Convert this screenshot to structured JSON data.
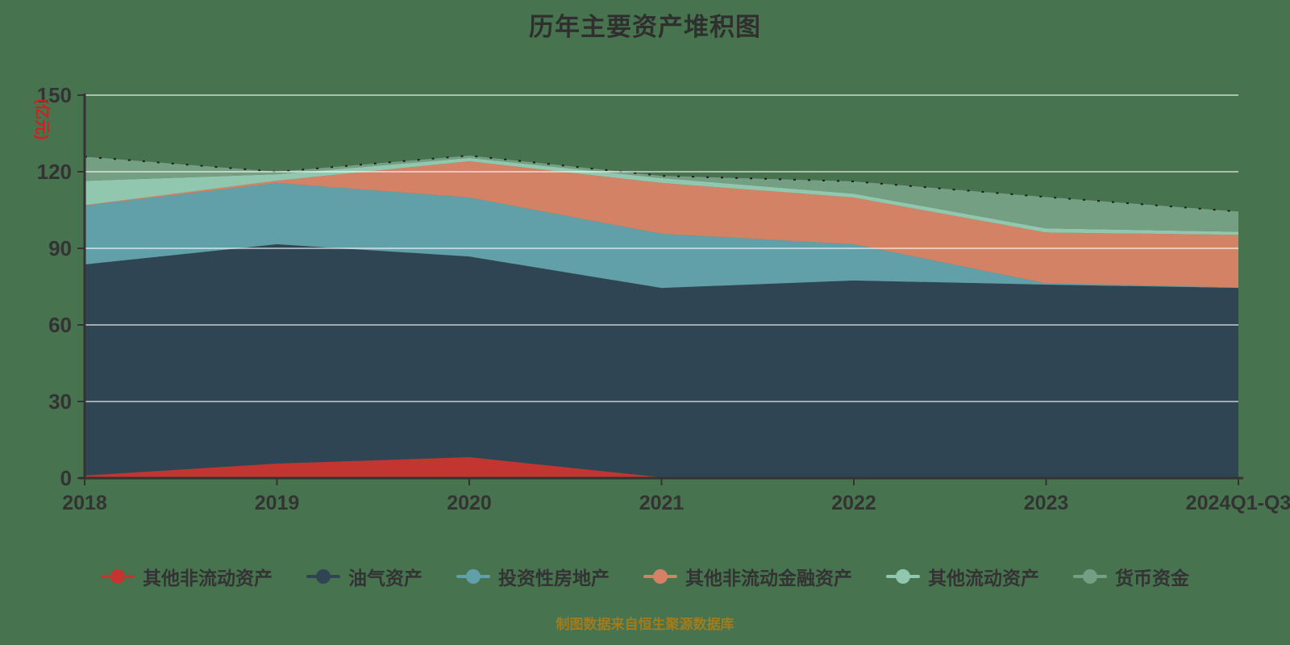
{
  "title": "历年主要资产堆积图",
  "footer": "制图数据来自恒生聚源数据库",
  "chart_data": {
    "type": "area",
    "stacked": true,
    "title": "历年主要资产堆积图",
    "ylabel": "(亿元)",
    "xlabel": "",
    "ylim": [
      0,
      150
    ],
    "y_ticks": [
      0,
      30,
      60,
      90,
      120,
      150
    ],
    "grid": true,
    "legend_position": "bottom",
    "categories": [
      "2018",
      "2019",
      "2020",
      "2021",
      "2022",
      "2023",
      "2024Q1-Q3"
    ],
    "series": [
      {
        "name": "其他非流动资产",
        "color": "#c23531",
        "values": [
          1.0,
          5.7,
          8.2,
          0.3,
          0.3,
          0.3,
          0.3
        ]
      },
      {
        "name": "油气资产",
        "color": "#2f4554",
        "values": [
          82.7,
          85.9,
          78.6,
          74.2,
          77.1,
          75.5,
          74.2
        ]
      },
      {
        "name": "投资性房地产",
        "color": "#61a0a8",
        "values": [
          23.0,
          24.0,
          23.1,
          21.2,
          14.2,
          0.5,
          0.2
        ]
      },
      {
        "name": "其他非流动金融资产",
        "color": "#d48265",
        "values": [
          0.2,
          0.9,
          14.2,
          19.9,
          18.3,
          19.9,
          20.6
        ]
      },
      {
        "name": "其他流动资产",
        "color": "#91c7ae",
        "values": [
          9.5,
          2.5,
          1.3,
          1.9,
          1.5,
          1.6,
          1.2
        ]
      },
      {
        "name": "货币资金",
        "color": "#749f83",
        "values": [
          9.5,
          1.0,
          0.9,
          0.9,
          4.8,
          12.3,
          7.9
        ]
      }
    ],
    "totals": [
      125.9,
      120.0,
      126.3,
      118.4,
      116.2,
      110.1,
      104.4
    ]
  },
  "style": {
    "background": "#48734f",
    "axis_color": "#333333",
    "label_color": "#333333",
    "grid_color": "rgba(255,255,255,0.55)",
    "ylabel_color": "#d02020",
    "footer_color": "#a07c1e",
    "top_line_color": "#1c1c1c"
  }
}
